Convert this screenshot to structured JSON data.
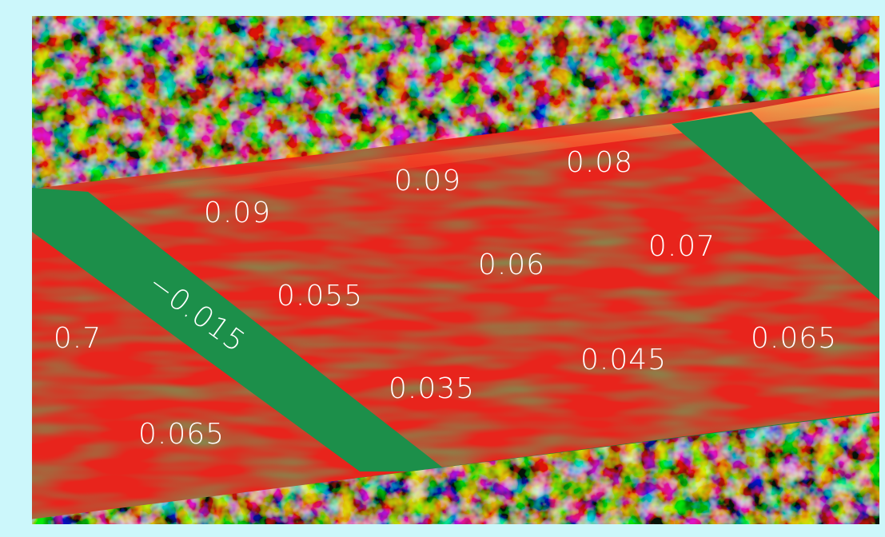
{
  "labels": [
    "0.09",
    "0.09",
    "0.08",
    "0.07",
    "0.06",
    "0.055",
    "−0.015",
    "0.7",
    "0.065",
    "0.045",
    "0.035",
    "0.065"
  ]
}
